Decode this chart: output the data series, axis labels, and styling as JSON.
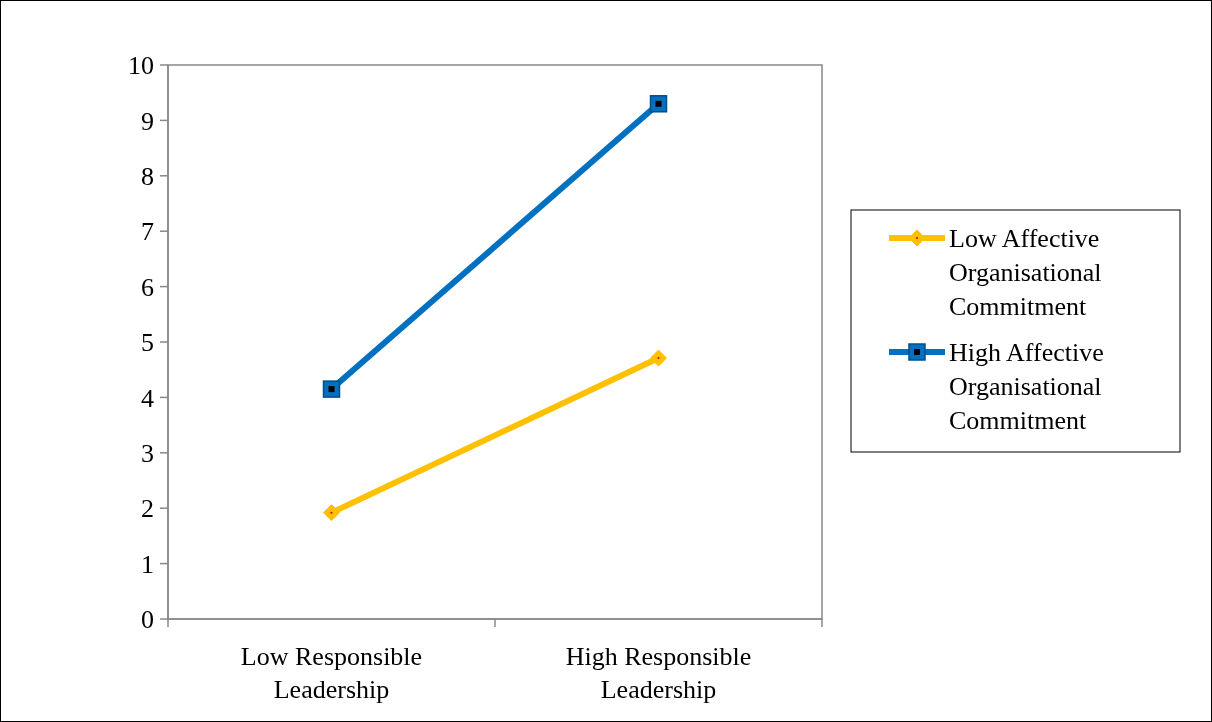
{
  "chart_data": {
    "type": "line",
    "categories": [
      "Low Responsible Leadership",
      "High Responsible Leadership"
    ],
    "series": [
      {
        "name": "Low Affective Organisational Commitment",
        "color": "#ffc000",
        "marker": "diamond",
        "values": [
          1.92,
          4.71
        ]
      },
      {
        "name": "High Affective Organisational Commitment",
        "color": "#0070c0",
        "marker": "square",
        "values": [
          4.15,
          9.3
        ]
      }
    ],
    "ylim": [
      0,
      10
    ],
    "yticks": [
      0,
      1,
      2,
      3,
      4,
      5,
      6,
      7,
      8,
      9,
      10
    ],
    "grid": false,
    "legend": "right",
    "line_style": "solid"
  }
}
